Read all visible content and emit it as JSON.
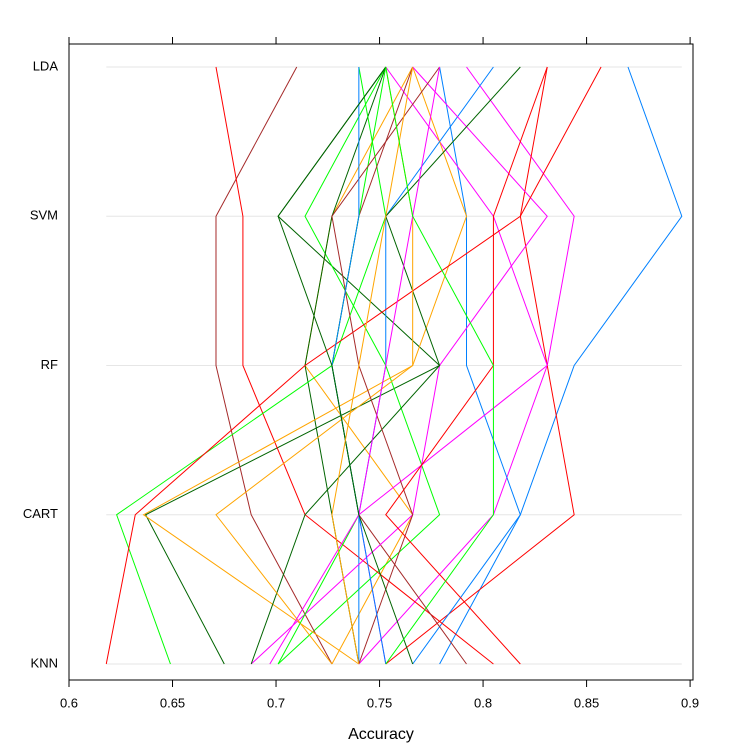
{
  "chart_data": {
    "type": "parallel",
    "xlabel": "Accuracy",
    "categories": [
      "LDA",
      "SVM",
      "RF",
      "CART",
      "KNN"
    ],
    "xlim": [
      0.6,
      0.9014
    ],
    "xticks": [
      0.6,
      0.65,
      0.7,
      0.75,
      0.8,
      0.85,
      0.9
    ],
    "grid": true,
    "series": [
      {
        "color": "#0080ff",
        "values": [
          0.87,
          0.896,
          0.844,
          0.818,
          0.779
        ]
      },
      {
        "color": "#ff00ff",
        "values": [
          0.792,
          0.844,
          0.831,
          0.805,
          0.74
        ]
      },
      {
        "color": "#006400",
        "values": [
          0.753,
          0.701,
          0.779,
          0.637,
          0.675
        ]
      },
      {
        "color": "#ff0000",
        "values": [
          0.831,
          0.818,
          0.831,
          0.844,
          0.753
        ]
      },
      {
        "color": "#ffa500",
        "values": [
          0.766,
          0.727,
          0.714,
          0.766,
          0.727
        ]
      },
      {
        "color": "#00ff00",
        "values": [
          0.753,
          0.714,
          0.753,
          0.779,
          0.701
        ]
      },
      {
        "color": "#a52a2a",
        "values": [
          0.71,
          0.671,
          0.671,
          0.688,
          0.727
        ]
      },
      {
        "color": "#0080ff",
        "values": [
          0.779,
          0.792,
          0.792,
          0.818,
          0.766
        ]
      },
      {
        "color": "#ff00ff",
        "values": [
          0.753,
          0.805,
          0.831,
          0.74,
          0.753
        ]
      },
      {
        "color": "#006400",
        "values": [
          0.753,
          0.727,
          0.714,
          0.727,
          0.74
        ]
      },
      {
        "color": "#ff0000",
        "values": [
          0.671,
          0.684,
          0.684,
          0.714,
          0.805
        ]
      },
      {
        "color": "#ffa500",
        "values": [
          0.766,
          0.792,
          0.766,
          0.636,
          0.74
        ]
      },
      {
        "color": "#00ff00",
        "values": [
          0.74,
          0.753,
          0.727,
          0.623,
          0.649
        ]
      },
      {
        "color": "#a52a2a",
        "values": [
          0.766,
          0.74,
          0.727,
          0.74,
          0.792
        ]
      },
      {
        "color": "#0080ff",
        "values": [
          0.805,
          0.753,
          0.753,
          0.74,
          0.74
        ]
      },
      {
        "color": "#ff00ff",
        "values": [
          0.766,
          0.831,
          0.779,
          0.766,
          0.688
        ]
      },
      {
        "color": "#006400",
        "values": [
          0.818,
          0.753,
          0.779,
          0.714,
          0.688
        ]
      },
      {
        "color": "#ff0000",
        "values": [
          0.857,
          0.818,
          0.714,
          0.632,
          0.618
        ]
      },
      {
        "color": "#ffa500",
        "values": [
          0.753,
          0.766,
          0.766,
          0.671,
          0.727
        ]
      },
      {
        "color": "#00ff00",
        "values": [
          0.753,
          0.74,
          0.727,
          0.74,
          0.701
        ]
      },
      {
        "color": "#a52a2a",
        "values": [
          0.779,
          0.727,
          0.74,
          0.766,
          0.74
        ]
      },
      {
        "color": "#0080ff",
        "values": [
          0.74,
          0.74,
          0.727,
          0.74,
          0.753
        ]
      },
      {
        "color": "#ff00ff",
        "values": [
          0.779,
          0.766,
          0.753,
          0.74,
          0.697
        ]
      },
      {
        "color": "#006400",
        "values": [
          0.753,
          0.701,
          0.727,
          0.74,
          0.766
        ]
      },
      {
        "color": "#ff0000",
        "values": [
          0.831,
          0.805,
          0.805,
          0.753,
          0.818
        ]
      },
      {
        "color": "#ffa500",
        "values": [
          0.766,
          0.753,
          0.74,
          0.727,
          0.74
        ]
      },
      {
        "color": "#00ff00",
        "values": [
          0.753,
          0.766,
          0.805,
          0.805,
          0.753
        ]
      }
    ]
  }
}
